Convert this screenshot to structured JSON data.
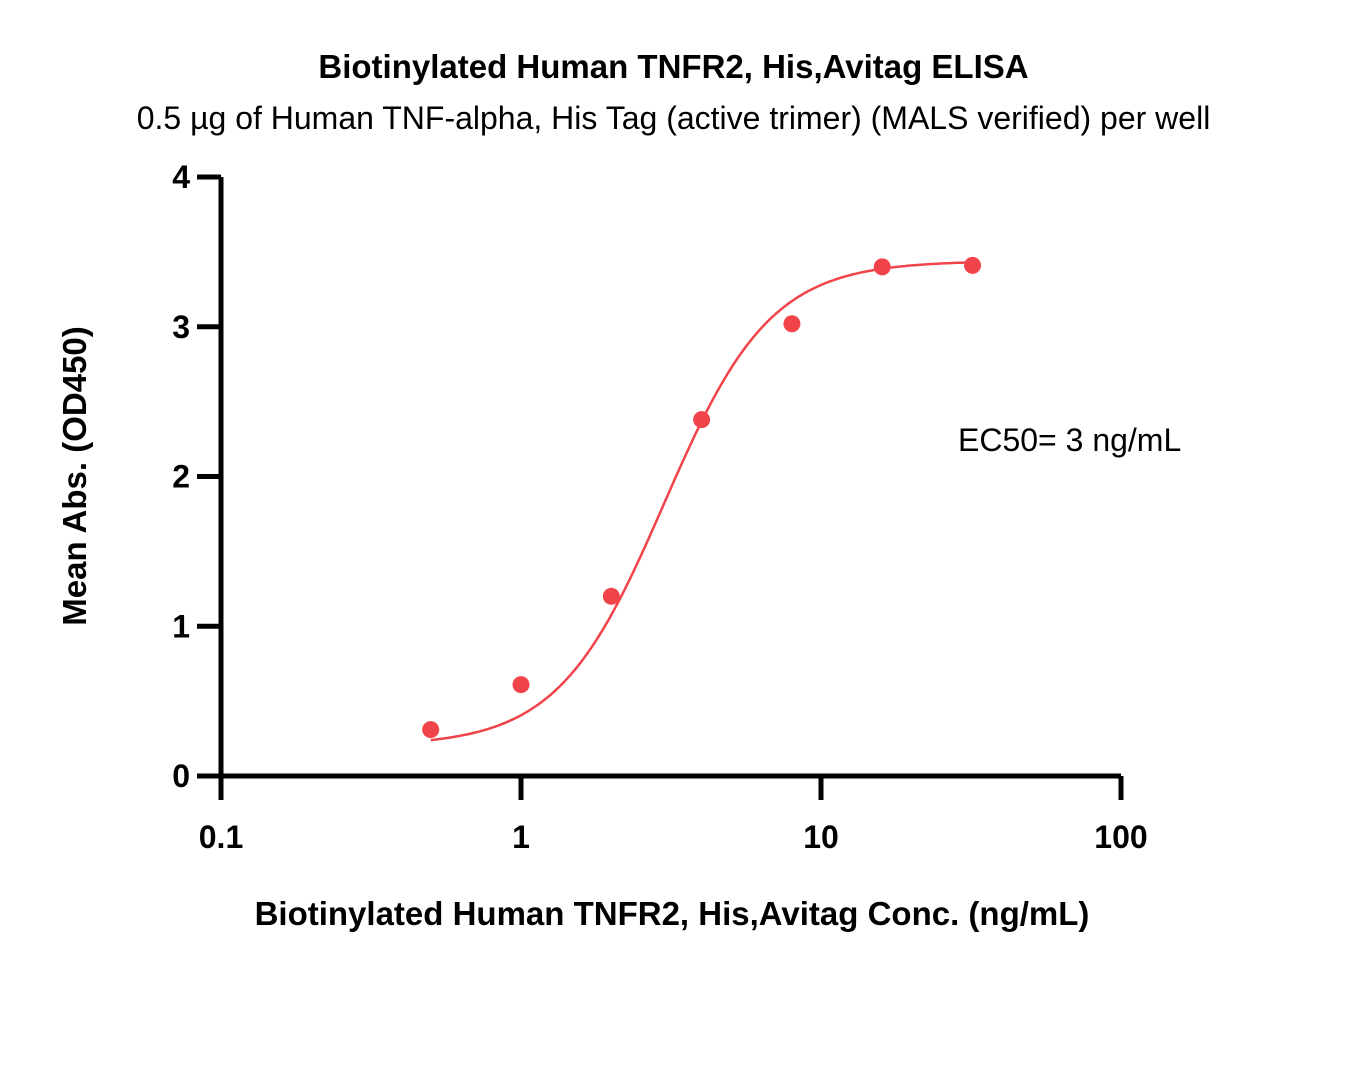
{
  "chart_data": {
    "type": "scatter",
    "title": "Biotinylated Human TNFR2, His,Avitag ELISA",
    "subtitle": "0.5 µg of Human TNF-alpha, His Tag (active trimer) (MALS verified) per well",
    "xlabel": "Biotinylated Human TNFR2, His,Avitag Conc. (ng/mL)",
    "ylabel": "Mean Abs. (OD450)",
    "xscale": "log",
    "xlim": [
      0.1,
      100
    ],
    "ylim": [
      0,
      4
    ],
    "xticks": [
      0.1,
      1,
      10,
      100
    ],
    "xtick_labels": [
      "0.1",
      "1",
      "10",
      "100"
    ],
    "yticks": [
      0,
      1,
      2,
      3,
      4
    ],
    "ytick_labels": [
      "0",
      "1",
      "2",
      "3",
      "4"
    ],
    "series": [
      {
        "x": [
          0.5,
          1,
          2,
          4,
          8,
          16,
          32
        ],
        "y": [
          0.31,
          0.61,
          1.2,
          2.38,
          3.02,
          3.4,
          3.41
        ],
        "color": "#f0444a",
        "fit": "4PL sigmoidal curve"
      }
    ],
    "annotations": [
      "EC50= 3 ng/mL"
    ],
    "grid": false,
    "legend": "none"
  }
}
